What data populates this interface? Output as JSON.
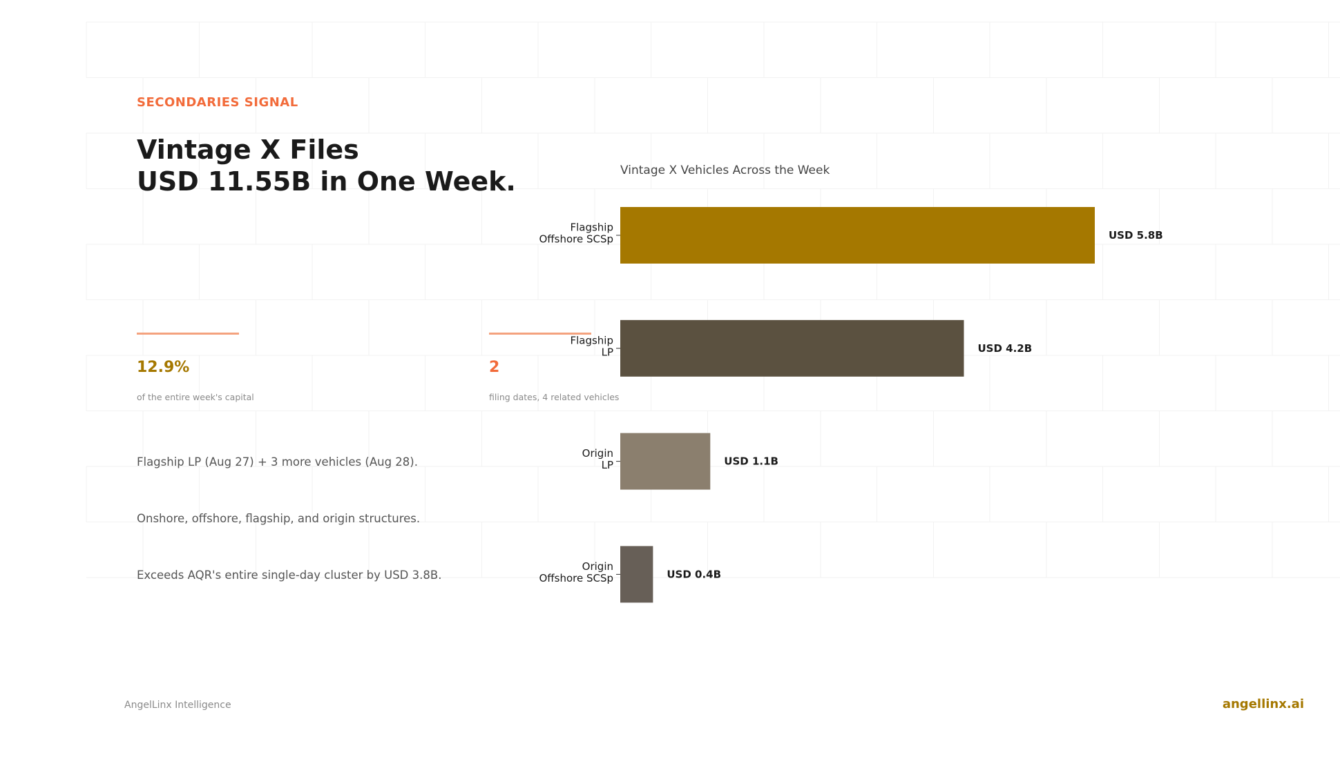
{
  "header": {
    "kicker": "SECONDARIES SIGNAL",
    "title_line1": "Vintage X Files",
    "title_line2": "USD 11.55B in One Week."
  },
  "stats": [
    {
      "value": "12.9%",
      "caption": "of the entire week's capital"
    },
    {
      "value": "2",
      "caption": "filing dates, 4 related vehicles"
    }
  ],
  "bullets": [
    "Flagship LP (Aug 27) + 3 more vehicles (Aug 28).",
    "Onshore, offshore, flagship, and origin structures.",
    "Exceeds AQR's entire single-day cluster by USD 3.8B."
  ],
  "footer": {
    "brand_left": "AngelLinx Intelligence",
    "brand_right": "angellinx.ai"
  },
  "colors": {
    "accent_orange": "#F26B3A",
    "accent_gold": "#A57800",
    "rule_orange": "#F4A27E"
  },
  "chart_data": {
    "type": "bar",
    "orientation": "horizontal",
    "title": "Vintage X Vehicles Across the Week",
    "categories": [
      [
        "Flagship",
        "Offshore SCSp"
      ],
      [
        "Flagship",
        "LP"
      ],
      [
        "Origin",
        "LP"
      ],
      [
        "Origin",
        "Offshore SCSp"
      ]
    ],
    "values": [
      5.8,
      4.2,
      1.1,
      0.4
    ],
    "value_labels": [
      "USD 5.8B",
      "USD 4.2B",
      "USD 1.1B",
      "USD 0.4B"
    ],
    "colors": [
      "#A57800",
      "#5B5140",
      "#8B7F6E",
      "#675F57"
    ],
    "xlim": [
      0,
      5.8
    ],
    "grid": false,
    "legend": "none"
  }
}
